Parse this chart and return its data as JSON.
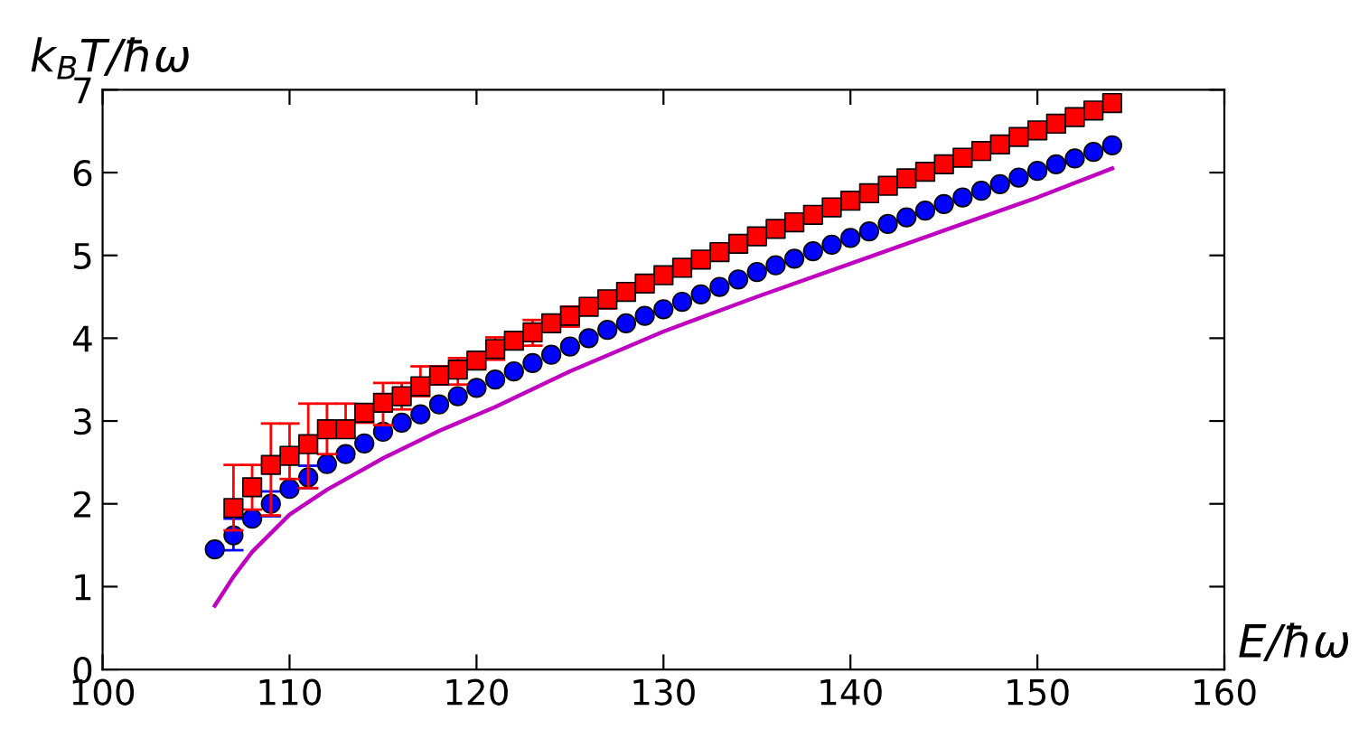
{
  "chart_data": {
    "type": "scatter",
    "xlabel": "E/ħω",
    "ylabel": "k$_{B}$T/ħω",
    "xlim": [
      100,
      160
    ],
    "xticks": [
      100,
      110,
      120,
      130,
      140,
      150,
      160
    ],
    "ylim": [
      0,
      7
    ],
    "yticks": [
      0,
      1,
      2,
      3,
      4,
      5,
      6,
      7
    ],
    "grid": false,
    "legend": false,
    "series": [
      {
        "marker": "circle",
        "color": "#0000ff",
        "x": [
          106,
          107,
          108,
          109,
          110,
          111,
          112,
          113,
          114,
          115,
          116,
          117,
          118,
          119,
          120,
          121,
          122,
          123,
          124,
          125,
          126,
          127,
          128,
          129,
          130,
          131,
          132,
          133,
          134,
          135,
          136,
          137,
          138,
          139,
          140,
          141,
          142,
          143,
          144,
          145,
          146,
          147,
          148,
          149,
          150,
          151,
          152,
          153,
          154
        ],
        "values": [
          1.45,
          1.62,
          1.82,
          2.0,
          2.18,
          2.32,
          2.48,
          2.6,
          2.73,
          2.87,
          2.98,
          3.08,
          3.2,
          3.3,
          3.4,
          3.5,
          3.6,
          3.7,
          3.8,
          3.9,
          4.0,
          4.1,
          4.18,
          4.27,
          4.35,
          4.44,
          4.53,
          4.62,
          4.71,
          4.8,
          4.88,
          4.96,
          5.05,
          5.13,
          5.21,
          5.29,
          5.38,
          5.46,
          5.54,
          5.62,
          5.7,
          5.78,
          5.86,
          5.94,
          6.02,
          6.1,
          6.17,
          6.25,
          6.33
        ],
        "errors": [
          null,
          [
            1.44,
            1.82
          ],
          null,
          [
            1.85,
            2.15
          ],
          null,
          [
            2.19,
            2.46
          ],
          null,
          null,
          null,
          null,
          null,
          null,
          null,
          null,
          null,
          null,
          null,
          null,
          null,
          null,
          null,
          null,
          null,
          null,
          null,
          null,
          null,
          null,
          null,
          null,
          null,
          null,
          null,
          null,
          null,
          null,
          null,
          null,
          null,
          null,
          null,
          null,
          null,
          null,
          null,
          null,
          null,
          null,
          null
        ]
      },
      {
        "marker": "square",
        "color": "#ff0000",
        "x": [
          107,
          108,
          109,
          110,
          111,
          112,
          113,
          114,
          115,
          116,
          117,
          118,
          119,
          120,
          121,
          122,
          123,
          124,
          125,
          126,
          127,
          128,
          129,
          130,
          131,
          132,
          133,
          134,
          135,
          136,
          137,
          138,
          139,
          140,
          141,
          142,
          143,
          144,
          145,
          146,
          147,
          148,
          149,
          150,
          151,
          152,
          153,
          154
        ],
        "values": [
          1.95,
          2.2,
          2.47,
          2.58,
          2.72,
          2.9,
          2.9,
          3.1,
          3.22,
          3.3,
          3.42,
          3.55,
          3.62,
          3.73,
          3.87,
          3.97,
          4.07,
          4.18,
          4.27,
          4.38,
          4.47,
          4.56,
          4.66,
          4.76,
          4.85,
          4.95,
          5.04,
          5.14,
          5.23,
          5.32,
          5.4,
          5.49,
          5.58,
          5.66,
          5.75,
          5.84,
          5.93,
          6.01,
          6.1,
          6.18,
          6.26,
          6.34,
          6.43,
          6.51,
          6.59,
          6.67,
          6.75,
          6.84
        ],
        "errors": [
          [
            1.68,
            2.47
          ],
          [
            1.93,
            2.47
          ],
          [
            1.86,
            2.97
          ],
          [
            2.3,
            2.97
          ],
          [
            2.19,
            3.21
          ],
          [
            2.6,
            3.21
          ],
          [
            2.81,
            3.21
          ],
          [
            2.98,
            3.16
          ],
          [
            2.95,
            3.46
          ],
          [
            3.14,
            3.46
          ],
          [
            3.3,
            3.66
          ],
          [
            3.44,
            3.66
          ],
          [
            3.44,
            3.76
          ],
          [
            3.65,
            3.81
          ],
          [
            3.74,
            4.01
          ],
          null,
          [
            3.91,
            4.22
          ],
          null,
          [
            4.14,
            4.38
          ],
          null,
          [
            4.36,
            4.57
          ],
          null,
          [
            4.6,
            4.73
          ],
          null,
          null,
          null,
          null,
          null,
          null,
          null,
          null,
          null,
          null,
          null,
          null,
          null,
          null,
          null,
          null,
          null,
          null,
          null,
          null,
          null,
          null,
          null,
          null,
          null
        ]
      },
      {
        "type": "line",
        "marker": "none",
        "line_style": "solid",
        "color": "#c000c0",
        "x": [
          106,
          107,
          108,
          110,
          112,
          115,
          118,
          121,
          125,
          130,
          135,
          140,
          145,
          150,
          154
        ],
        "values": [
          0.77,
          1.12,
          1.42,
          1.87,
          2.17,
          2.55,
          2.88,
          3.17,
          3.6,
          4.08,
          4.5,
          4.9,
          5.3,
          5.7,
          6.05
        ]
      }
    ]
  }
}
